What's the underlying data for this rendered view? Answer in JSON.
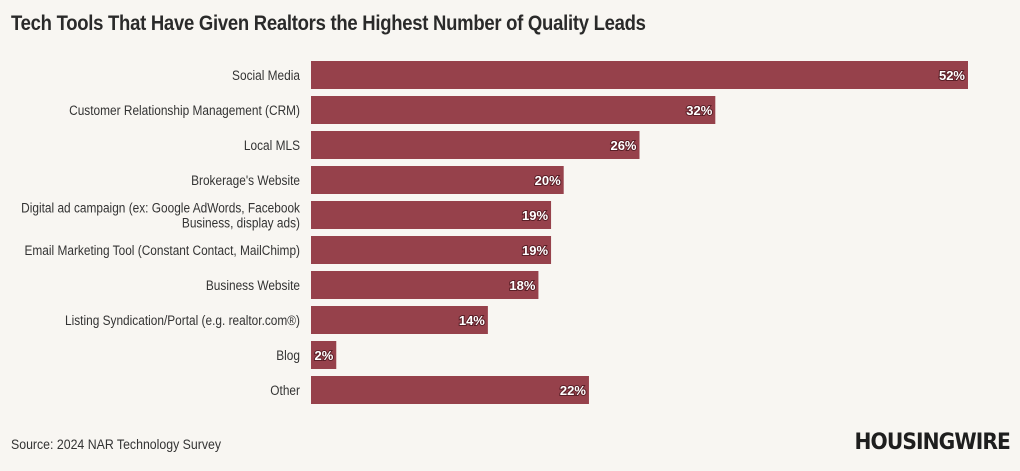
{
  "chart_data": {
    "type": "bar",
    "orientation": "horizontal",
    "title": "Tech Tools That Have Given Realtors the Highest Number of Quality Leads",
    "categories": [
      "Social Media",
      "Customer Relationship Management (CRM)",
      "Local MLS",
      "Brokerage's Website",
      "Digital ad campaign (ex: Google AdWords, Facebook\nBusiness, display ads)",
      "Email Marketing Tool (Constant Contact, MailChimp)",
      "Business Website",
      "Listing Syndication/Portal (e.g. realtor.com®)",
      "Blog",
      "Other"
    ],
    "values": [
      52,
      32,
      26,
      20,
      19,
      19,
      18,
      14,
      2,
      22
    ],
    "value_suffix": "%",
    "xlim": [
      0,
      52
    ],
    "grid": false,
    "bar_color": "#96414b"
  },
  "footer": {
    "source": "Source: 2024 NAR Technology Survey",
    "logo": "HOUSINGWIRE"
  }
}
